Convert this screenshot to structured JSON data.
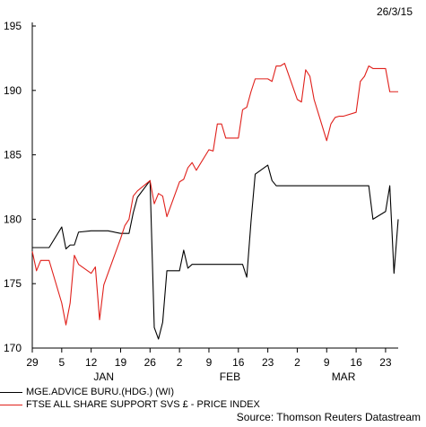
{
  "date_stamp": "26/3/15",
  "source": "Source: Thomson Reuters Datastream",
  "chart_data": {
    "type": "line",
    "ylim": [
      170,
      195
    ],
    "y_ticks": [
      170,
      175,
      180,
      185,
      190,
      195
    ],
    "x_range": [
      "2014-12-29",
      "2015-03-26"
    ],
    "x_ticks": [
      {
        "date": "2014-12-29",
        "label": "29"
      },
      {
        "date": "2015-01-05",
        "label": "5"
      },
      {
        "date": "2015-01-12",
        "label": "12"
      },
      {
        "date": "2015-01-19",
        "label": "19"
      },
      {
        "date": "2015-01-26",
        "label": "26"
      },
      {
        "date": "2015-02-02",
        "label": "2"
      },
      {
        "date": "2015-02-09",
        "label": "9"
      },
      {
        "date": "2015-02-16",
        "label": "16"
      },
      {
        "date": "2015-02-23",
        "label": "23"
      },
      {
        "date": "2015-03-02",
        "label": "2"
      },
      {
        "date": "2015-03-09",
        "label": "9"
      },
      {
        "date": "2015-03-16",
        "label": "16"
      },
      {
        "date": "2015-03-23",
        "label": "23"
      }
    ],
    "month_labels": [
      {
        "date": "2015-01-15",
        "label": "JAN"
      },
      {
        "date": "2015-02-14",
        "label": "FEB"
      },
      {
        "date": "2015-03-13",
        "label": "MAR"
      }
    ],
    "series": [
      {
        "name": "MGE.ADVICE BURU.(HDG.) (WI)",
        "color": "#000000",
        "points": [
          [
            "2014-12-29",
            177.8
          ],
          [
            "2014-12-30",
            177.8
          ],
          [
            "2014-12-31",
            177.8
          ],
          [
            "2015-01-01",
            177.8
          ],
          [
            "2015-01-02",
            177.8
          ],
          [
            "2015-01-05",
            179.4
          ],
          [
            "2015-01-06",
            177.7
          ],
          [
            "2015-01-07",
            178.0
          ],
          [
            "2015-01-08",
            178.0
          ],
          [
            "2015-01-09",
            179.0
          ],
          [
            "2015-01-12",
            179.1
          ],
          [
            "2015-01-13",
            179.1
          ],
          [
            "2015-01-14",
            179.1
          ],
          [
            "2015-01-15",
            179.1
          ],
          [
            "2015-01-16",
            179.1
          ],
          [
            "2015-01-19",
            178.9
          ],
          [
            "2015-01-20",
            178.9
          ],
          [
            "2015-01-21",
            178.9
          ],
          [
            "2015-01-22",
            180.5
          ],
          [
            "2015-01-23",
            181.7
          ],
          [
            "2015-01-26",
            183.0
          ],
          [
            "2015-01-27",
            171.6
          ],
          [
            "2015-01-28",
            170.7
          ],
          [
            "2015-01-29",
            172.0
          ],
          [
            "2015-01-30",
            176.0
          ],
          [
            "2015-02-02",
            176.0
          ],
          [
            "2015-02-03",
            177.6
          ],
          [
            "2015-02-04",
            176.2
          ],
          [
            "2015-02-05",
            176.5
          ],
          [
            "2015-02-06",
            176.5
          ],
          [
            "2015-02-09",
            176.5
          ],
          [
            "2015-02-10",
            176.5
          ],
          [
            "2015-02-11",
            176.5
          ],
          [
            "2015-02-12",
            176.5
          ],
          [
            "2015-02-13",
            176.5
          ],
          [
            "2015-02-16",
            176.5
          ],
          [
            "2015-02-17",
            176.5
          ],
          [
            "2015-02-18",
            175.5
          ],
          [
            "2015-02-19",
            179.8
          ],
          [
            "2015-02-20",
            183.5
          ],
          [
            "2015-02-23",
            184.2
          ],
          [
            "2015-02-24",
            183.0
          ],
          [
            "2015-02-25",
            182.6
          ],
          [
            "2015-02-26",
            182.6
          ],
          [
            "2015-02-27",
            182.6
          ],
          [
            "2015-03-02",
            182.6
          ],
          [
            "2015-03-03",
            182.6
          ],
          [
            "2015-03-04",
            182.6
          ],
          [
            "2015-03-05",
            182.6
          ],
          [
            "2015-03-06",
            182.6
          ],
          [
            "2015-03-09",
            182.6
          ],
          [
            "2015-03-10",
            182.6
          ],
          [
            "2015-03-11",
            182.6
          ],
          [
            "2015-03-12",
            182.6
          ],
          [
            "2015-03-13",
            182.6
          ],
          [
            "2015-03-16",
            182.6
          ],
          [
            "2015-03-17",
            182.6
          ],
          [
            "2015-03-18",
            182.6
          ],
          [
            "2015-03-19",
            182.6
          ],
          [
            "2015-03-20",
            180.0
          ],
          [
            "2015-03-23",
            180.6
          ],
          [
            "2015-03-24",
            182.6
          ],
          [
            "2015-03-25",
            175.8
          ],
          [
            "2015-03-26",
            180.0
          ]
        ]
      },
      {
        "name": "FTSE ALL SHARE SUPPORT SVS £ - PRICE INDEX",
        "color": "#e0201b",
        "points": [
          [
            "2014-12-29",
            177.5
          ],
          [
            "2014-12-30",
            176.0
          ],
          [
            "2014-12-31",
            176.8
          ],
          [
            "2015-01-01",
            176.8
          ],
          [
            "2015-01-02",
            176.8
          ],
          [
            "2015-01-05",
            173.5
          ],
          [
            "2015-01-06",
            171.8
          ],
          [
            "2015-01-07",
            173.5
          ],
          [
            "2015-01-08",
            177.2
          ],
          [
            "2015-01-09",
            176.5
          ],
          [
            "2015-01-12",
            175.8
          ],
          [
            "2015-01-13",
            176.3
          ],
          [
            "2015-01-14",
            172.2
          ],
          [
            "2015-01-15",
            174.9
          ],
          [
            "2015-01-16",
            175.8
          ],
          [
            "2015-01-19",
            178.5
          ],
          [
            "2015-01-20",
            179.5
          ],
          [
            "2015-01-21",
            180.0
          ],
          [
            "2015-01-22",
            181.8
          ],
          [
            "2015-01-23",
            182.2
          ],
          [
            "2015-01-26",
            183.0
          ],
          [
            "2015-01-27",
            181.2
          ],
          [
            "2015-01-28",
            182.0
          ],
          [
            "2015-01-29",
            181.8
          ],
          [
            "2015-01-30",
            180.2
          ],
          [
            "2015-02-02",
            182.9
          ],
          [
            "2015-02-03",
            183.1
          ],
          [
            "2015-02-04",
            184.0
          ],
          [
            "2015-02-05",
            184.4
          ],
          [
            "2015-02-06",
            183.8
          ],
          [
            "2015-02-09",
            185.4
          ],
          [
            "2015-02-10",
            185.3
          ],
          [
            "2015-02-11",
            187.4
          ],
          [
            "2015-02-12",
            187.4
          ],
          [
            "2015-02-13",
            186.3
          ],
          [
            "2015-02-16",
            186.3
          ],
          [
            "2015-02-17",
            188.5
          ],
          [
            "2015-02-18",
            188.7
          ],
          [
            "2015-02-19",
            189.9
          ],
          [
            "2015-02-20",
            190.9
          ],
          [
            "2015-02-23",
            190.9
          ],
          [
            "2015-02-24",
            190.7
          ],
          [
            "2015-02-25",
            191.9
          ],
          [
            "2015-02-26",
            191.9
          ],
          [
            "2015-02-27",
            192.1
          ],
          [
            "2015-03-02",
            189.3
          ],
          [
            "2015-03-03",
            189.1
          ],
          [
            "2015-03-04",
            191.6
          ],
          [
            "2015-03-05",
            191.1
          ],
          [
            "2015-03-06",
            189.3
          ],
          [
            "2015-03-09",
            186.1
          ],
          [
            "2015-03-10",
            187.4
          ],
          [
            "2015-03-11",
            187.9
          ],
          [
            "2015-03-12",
            188.0
          ],
          [
            "2015-03-13",
            188.0
          ],
          [
            "2015-03-16",
            188.3
          ],
          [
            "2015-03-17",
            190.7
          ],
          [
            "2015-03-18",
            191.1
          ],
          [
            "2015-03-19",
            191.9
          ],
          [
            "2015-03-20",
            191.7
          ],
          [
            "2015-03-23",
            191.7
          ],
          [
            "2015-03-24",
            189.9
          ],
          [
            "2015-03-25",
            189.9
          ],
          [
            "2015-03-26",
            189.9
          ]
        ]
      }
    ]
  }
}
